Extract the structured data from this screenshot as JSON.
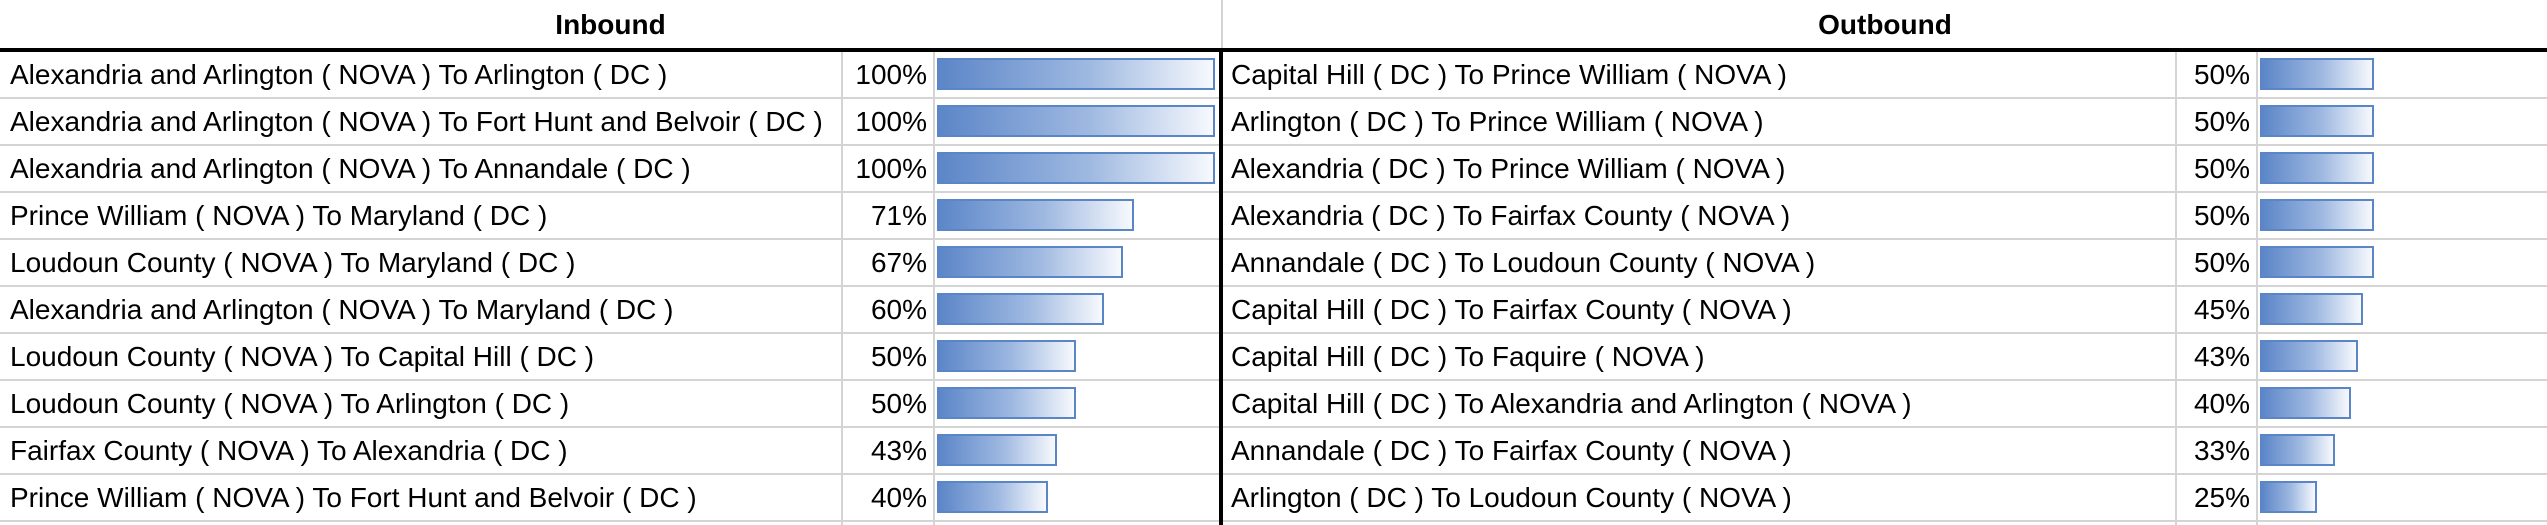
{
  "header": {
    "inbound": "Inbound",
    "outbound": "Outbound"
  },
  "colors": {
    "bar_border": "#5a86c8",
    "bar_start": "#5c86c8",
    "bar_end": "#f7f9fd",
    "gridline": "#d4d4d4"
  },
  "inbound": [
    {
      "label": "Alexandria and Arlington ( NOVA ) To Arlington (  DC )",
      "pct": "100%",
      "value": 1.0
    },
    {
      "label": "Alexandria and Arlington ( NOVA ) To Fort Hunt and Belvoir (  DC )",
      "pct": "100%",
      "value": 1.0
    },
    {
      "label": "Alexandria and Arlington ( NOVA ) To Annandale (  DC )",
      "pct": "100%",
      "value": 1.0
    },
    {
      "label": "Prince William ( NOVA ) To Maryland (  DC )",
      "pct": "71%",
      "value": 0.71
    },
    {
      "label": "Loudoun County ( NOVA ) To Maryland (  DC )",
      "pct": "67%",
      "value": 0.67
    },
    {
      "label": "Alexandria and Arlington ( NOVA ) To Maryland (  DC )",
      "pct": "60%",
      "value": 0.6
    },
    {
      "label": "Loudoun County ( NOVA ) To Capital Hill (  DC )",
      "pct": "50%",
      "value": 0.5
    },
    {
      "label": "Loudoun County ( NOVA ) To Arlington (  DC )",
      "pct": "50%",
      "value": 0.5
    },
    {
      "label": "Fairfax County ( NOVA ) To Alexandria (  DC )",
      "pct": "43%",
      "value": 0.43
    },
    {
      "label": "Prince William ( NOVA ) To Fort Hunt and Belvoir (  DC )",
      "pct": "40%",
      "value": 0.4
    }
  ],
  "outbound": [
    {
      "label": "Capital Hill ( DC ) To Prince William (  NOVA )",
      "pct": "50%",
      "value": 0.5
    },
    {
      "label": "Arlington ( DC ) To Prince William (  NOVA )",
      "pct": "50%",
      "value": 0.5
    },
    {
      "label": "Alexandria ( DC ) To Prince William (  NOVA )",
      "pct": "50%",
      "value": 0.5
    },
    {
      "label": "Alexandria ( DC ) To Fairfax County (  NOVA )",
      "pct": "50%",
      "value": 0.5
    },
    {
      "label": "Annandale ( DC ) To Loudoun County (  NOVA )",
      "pct": "50%",
      "value": 0.5
    },
    {
      "label": "Capital Hill ( DC ) To Fairfax County (  NOVA )",
      "pct": "45%",
      "value": 0.45
    },
    {
      "label": "Capital Hill ( DC ) To Faquire (  NOVA )",
      "pct": "43%",
      "value": 0.43
    },
    {
      "label": "Capital Hill ( DC ) To Alexandria and Arlington (  NOVA )",
      "pct": "40%",
      "value": 0.4
    },
    {
      "label": "Annandale ( DC ) To Fairfax County (  NOVA )",
      "pct": "33%",
      "value": 0.33
    },
    {
      "label": "Arlington ( DC ) To Loudoun County (  NOVA )",
      "pct": "25%",
      "value": 0.25
    }
  ]
}
